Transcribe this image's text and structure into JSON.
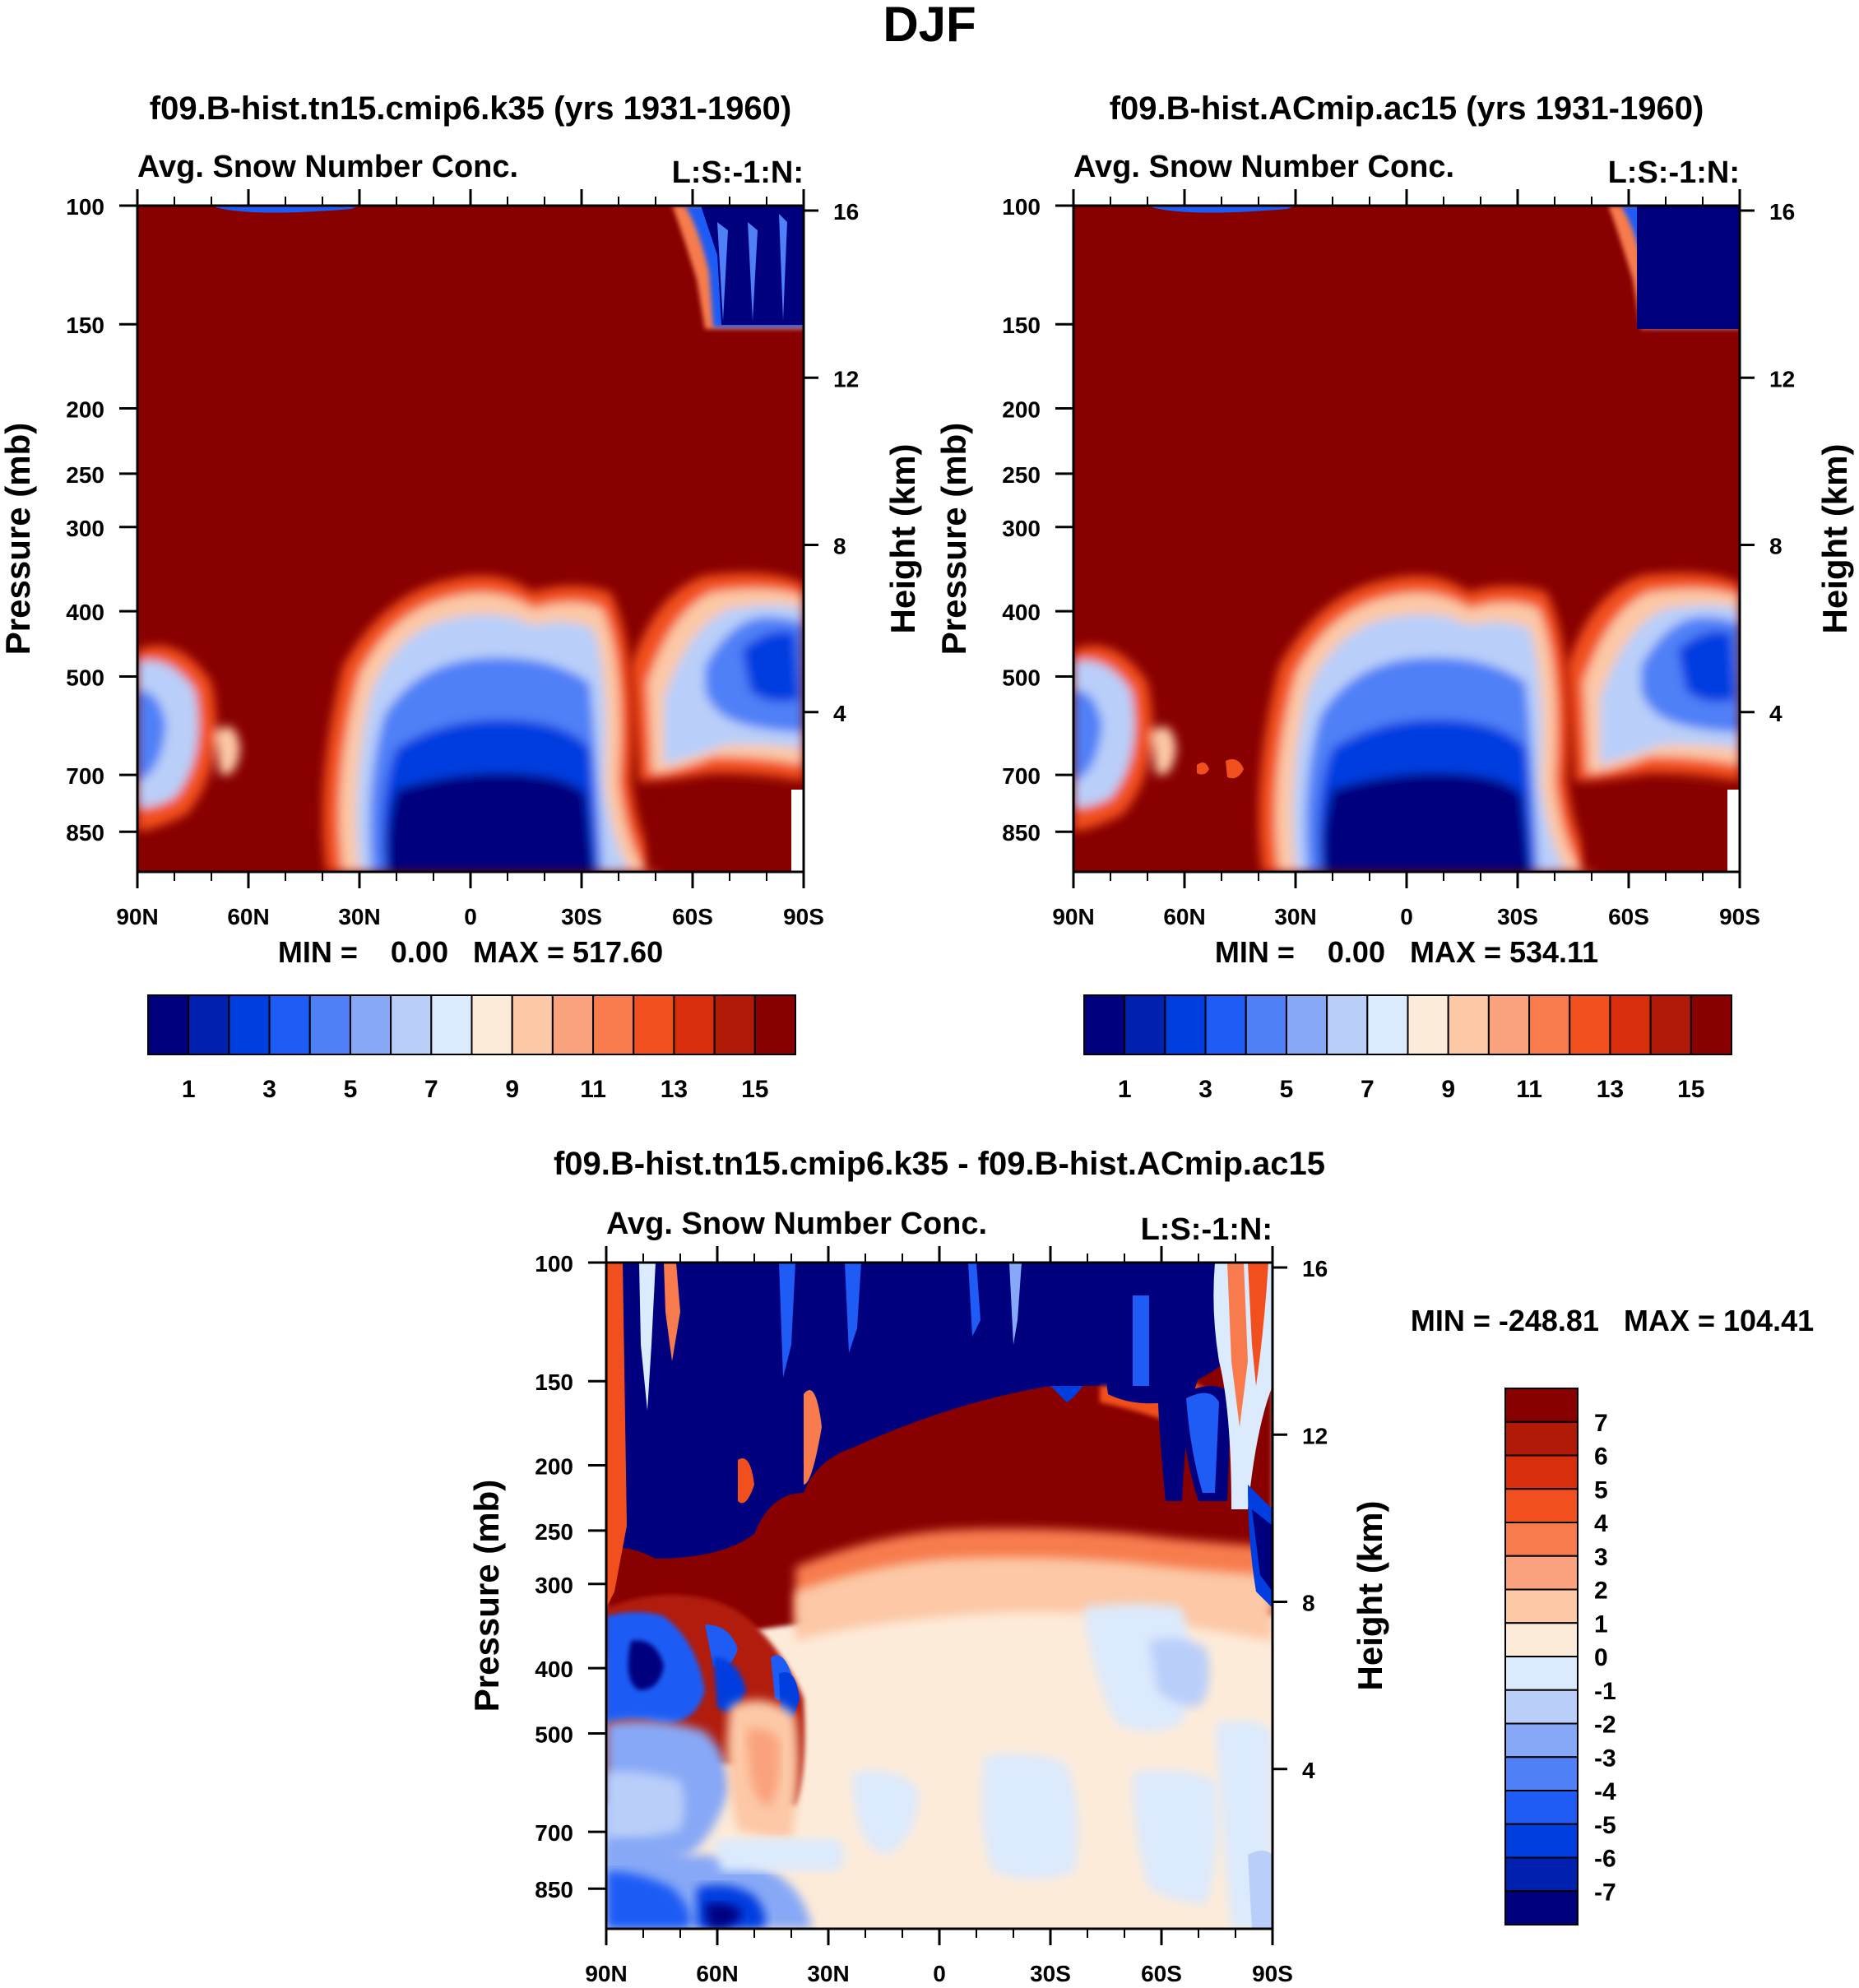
{
  "figure_title": "DJF",
  "chart_data": [
    {
      "type": "heatmap",
      "id": "case",
      "title": "f09.B-hist.tn15.cmip6.k35 (yrs 1931-1960)",
      "subtitle_left": "Avg. Snow Number Conc.",
      "subtitle_right": "L:S:-1:N:",
      "ylabel": "Pressure (mb)",
      "ylabel_right": "Height (km)",
      "x_ticks": [
        "90N",
        "60N",
        "30N",
        "0",
        "30S",
        "60S",
        "90S"
      ],
      "xlim": [
        90,
        -90
      ],
      "y_ticks": [
        100,
        150,
        200,
        250,
        300,
        400,
        500,
        700,
        850
      ],
      "ylim": [
        100,
        1000
      ],
      "y_scale": "log",
      "height_ticks_km": [
        16,
        12,
        8,
        4
      ],
      "stats": "MIN =    0.00   MAX = 517.60",
      "colorbar_labels": [
        "1",
        "3",
        "5",
        "7",
        "9",
        "11",
        "13",
        "15"
      ],
      "colors": [
        "#00007f",
        "#0020b0",
        "#003ee0",
        "#1f5cf5",
        "#4f80f7",
        "#87a8f6",
        "#b9cff9",
        "#dceafd",
        "#fdebd9",
        "#fcc8a6",
        "#f9a27d",
        "#f77b4d",
        "#f24f1e",
        "#d92e0c",
        "#b11a07",
        "#880000"
      ]
    },
    {
      "type": "heatmap",
      "id": "control",
      "title": "f09.B-hist.ACmip.ac15 (yrs 1931-1960)",
      "subtitle_left": "Avg. Snow Number Conc.",
      "subtitle_right": "L:S:-1:N:",
      "ylabel": "Pressure (mb)",
      "ylabel_right": "Height (km)",
      "x_ticks": [
        "90N",
        "60N",
        "30N",
        "0",
        "30S",
        "60S",
        "90S"
      ],
      "xlim": [
        90,
        -90
      ],
      "y_ticks": [
        100,
        150,
        200,
        250,
        300,
        400,
        500,
        700,
        850
      ],
      "ylim": [
        100,
        1000
      ],
      "y_scale": "log",
      "height_ticks_km": [
        16,
        12,
        8,
        4
      ],
      "stats": "MIN =    0.00   MAX = 534.11",
      "colorbar_labels": [
        "1",
        "3",
        "5",
        "7",
        "9",
        "11",
        "13",
        "15"
      ],
      "colors": [
        "#00007f",
        "#0020b0",
        "#003ee0",
        "#1f5cf5",
        "#4f80f7",
        "#87a8f6",
        "#b9cff9",
        "#dceafd",
        "#fdebd9",
        "#fcc8a6",
        "#f9a27d",
        "#f77b4d",
        "#f24f1e",
        "#d92e0c",
        "#b11a07",
        "#880000"
      ]
    },
    {
      "type": "heatmap",
      "id": "difference",
      "title": "f09.B-hist.tn15.cmip6.k35 - f09.B-hist.ACmip.ac15",
      "subtitle_left": "Avg. Snow Number Conc.",
      "subtitle_right": "L:S:-1:N:",
      "ylabel": "Pressure (mb)",
      "ylabel_right": "Height (km)",
      "x_ticks": [
        "90N",
        "60N",
        "30N",
        "0",
        "30S",
        "60S",
        "90S"
      ],
      "xlim": [
        90,
        -90
      ],
      "y_ticks": [
        100,
        150,
        200,
        250,
        300,
        400,
        500,
        700,
        850
      ],
      "ylim": [
        100,
        1000
      ],
      "y_scale": "log",
      "height_ticks_km": [
        16,
        12,
        8,
        4
      ],
      "stats": "MIN = -248.81   MAX = 104.41",
      "colorbar_labels": [
        "7",
        "6",
        "5",
        "4",
        "3",
        "2",
        "1",
        "0",
        "-1",
        "-2",
        "-3",
        "-4",
        "-5",
        "-6",
        "-7"
      ],
      "colors": [
        "#880000",
        "#b11a07",
        "#d92e0c",
        "#f24f1e",
        "#f77b4d",
        "#f9a27d",
        "#fcc8a6",
        "#fdebd9",
        "#dceafd",
        "#b9cff9",
        "#87a8f6",
        "#4f80f7",
        "#1f5cf5",
        "#003ee0",
        "#0020b0",
        "#00007f"
      ]
    }
  ]
}
